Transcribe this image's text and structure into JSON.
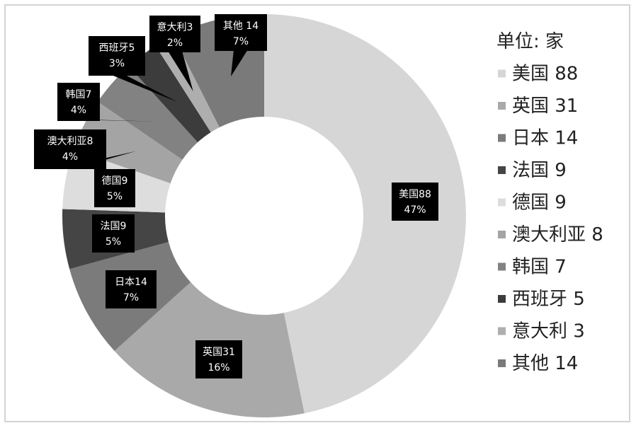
{
  "chart_data": {
    "type": "pie",
    "donut": true,
    "legend_title": "单位: 家",
    "legend_position": "right",
    "categories": [
      "美国",
      "英国",
      "日本",
      "法国",
      "德国",
      "澳大利亚",
      "韩国",
      "西班牙",
      "意大利",
      "其他"
    ],
    "values": [
      88,
      31,
      14,
      9,
      9,
      8,
      7,
      5,
      3,
      14
    ],
    "percent_labels": [
      "47%",
      "16%",
      "7%",
      "5%",
      "5%",
      "4%",
      "4%",
      "3%",
      "2%",
      "7%"
    ],
    "legend_labels": [
      "美国 88",
      "英国 31",
      "日本 14",
      "法国 9",
      "德国 9",
      "澳大利亚 8",
      "韩国 7",
      "西班牙 5",
      "意大利 3",
      "其他 14"
    ],
    "data_labels": [
      "美国88",
      "英国31",
      "日本14",
      "法国9",
      "德国9",
      "澳大利亚8",
      "韩国7",
      "西班牙5",
      "意大利3",
      "其他 14"
    ],
    "colors": [
      "#d6d6d6",
      "#a9a9a9",
      "#7b7b7b",
      "#454545",
      "#dddddd",
      "#a4a4a4",
      "#828282",
      "#3c3c3c",
      "#aeaeae",
      "#7a7a7a"
    ]
  }
}
